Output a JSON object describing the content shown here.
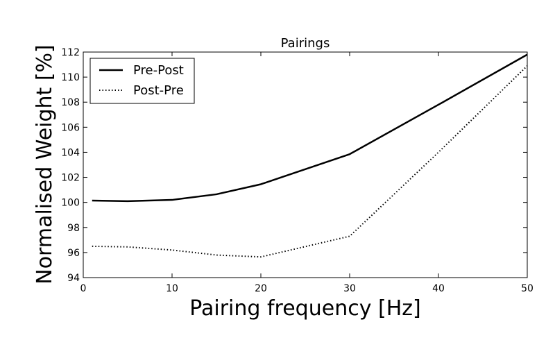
{
  "chart_data": {
    "type": "line",
    "title": "Pairings",
    "xlabel": "Pairing frequency [Hz]",
    "ylabel": "Normalised Weight [%]",
    "xlim": [
      0,
      50
    ],
    "ylim": [
      94,
      112
    ],
    "xticks": [
      0,
      10,
      20,
      30,
      40,
      50
    ],
    "yticks": [
      94,
      96,
      98,
      100,
      102,
      104,
      106,
      108,
      110,
      112
    ],
    "grid": false,
    "legend_position": "top-left",
    "x": [
      1,
      5,
      10,
      15,
      20,
      30,
      40,
      50
    ],
    "series": [
      {
        "name": "Pre-Post",
        "style": "solid",
        "color": "#000000",
        "values": [
          100.15,
          100.1,
          100.2,
          100.65,
          101.45,
          103.85,
          107.8,
          111.8
        ]
      },
      {
        "name": "Post-Pre",
        "style": "dotted",
        "color": "#000000",
        "values": [
          96.5,
          96.45,
          96.2,
          95.8,
          95.65,
          97.3,
          104.0,
          110.9
        ]
      }
    ]
  }
}
